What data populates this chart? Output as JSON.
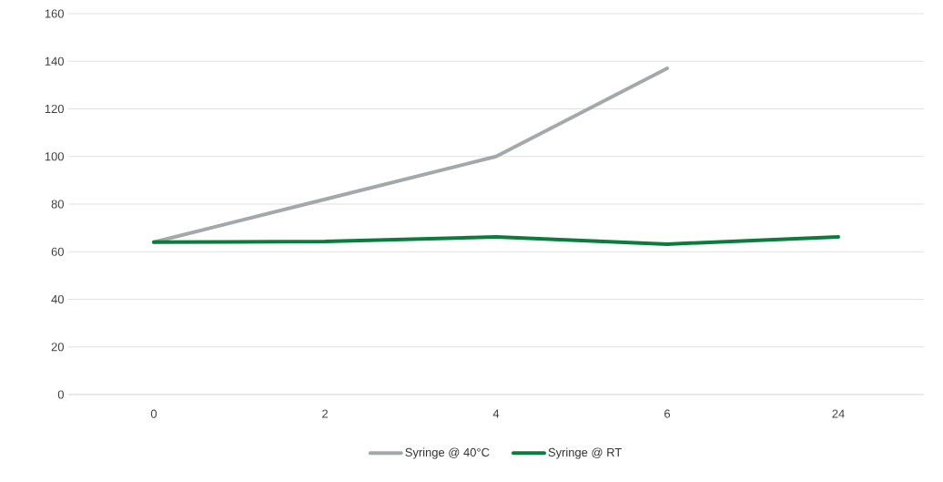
{
  "chart_data": {
    "type": "line",
    "categories": [
      "0",
      "2",
      "4",
      "6",
      "24"
    ],
    "series": [
      {
        "name": "Syringe @ 40°C",
        "color": "#a5a8ab",
        "values": [
          64,
          82,
          100,
          137,
          null
        ]
      },
      {
        "name": "Syringe @ RT",
        "color": "#0a7d3e",
        "values": [
          64,
          64.3,
          66.2,
          63.2,
          66.2
        ]
      }
    ],
    "ylim": [
      0,
      160
    ],
    "yticks": [
      0,
      20,
      40,
      60,
      80,
      100,
      120,
      140,
      160
    ],
    "grid": "y",
    "legend": "bottom",
    "marker": "none"
  }
}
